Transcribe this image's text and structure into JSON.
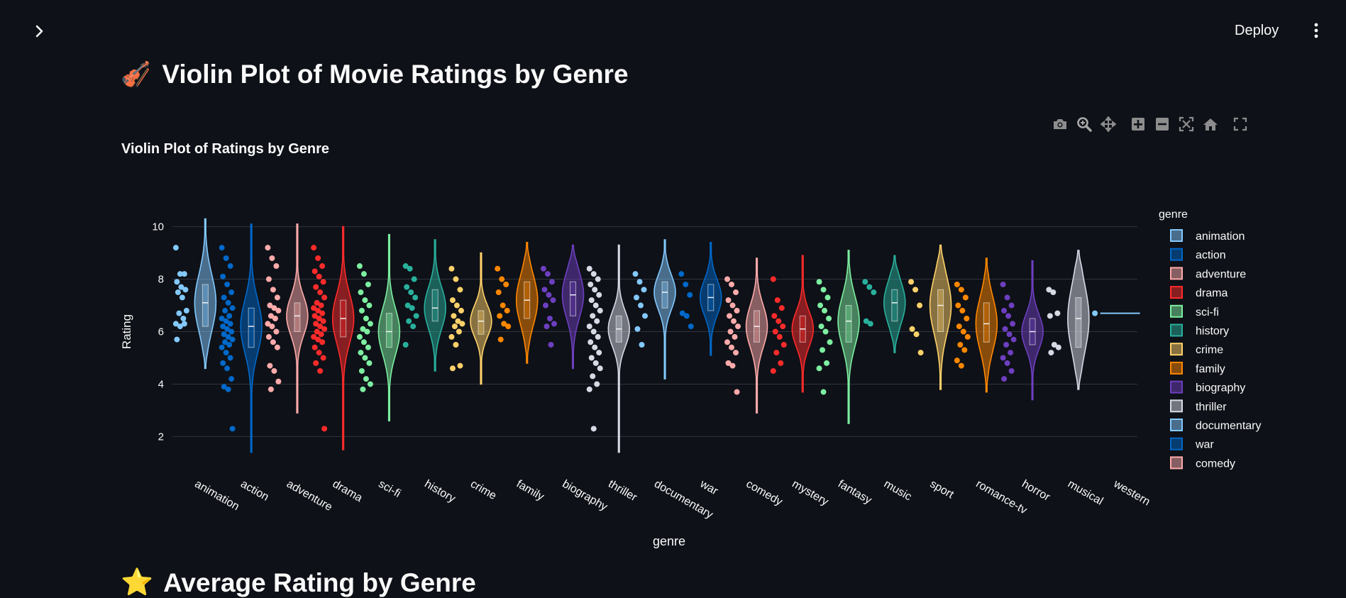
{
  "header": {
    "deploy_label": "Deploy",
    "sidebar_toggle_icon": "chevron-right-icon",
    "menu_icon": "kebab-menu-icon"
  },
  "page": {
    "title_emoji": "🎻",
    "title": "Violin Plot of Movie Ratings by Genre",
    "next_section_emoji": "⭐",
    "next_section_title": "Average Rating by Genre"
  },
  "modebar": {
    "icons": [
      "camera-icon",
      "zoom-icon",
      "pan-icon",
      "zoom-in-icon",
      "zoom-out-icon",
      "autoscale-icon",
      "reset-axes-icon",
      "fullscreen-icon"
    ]
  },
  "chart_data": {
    "type": "violin",
    "title": "Violin Plot of Ratings by Genre",
    "xlabel": "genre",
    "ylabel": "Rating",
    "ylim": [
      1.2,
      10.8
    ],
    "yticks": [
      2,
      4,
      6,
      8,
      10
    ],
    "grid": true,
    "legend_title": "genre",
    "legend_position": "right",
    "categories": [
      "animation",
      "action",
      "adventure",
      "drama",
      "sci-fi",
      "history",
      "crime",
      "family",
      "biography",
      "thriller",
      "documentary",
      "war",
      "comedy",
      "mystery",
      "fantasy",
      "music",
      "sport",
      "romance-tv",
      "horror",
      "musical",
      "western"
    ],
    "legend_visible": [
      "animation",
      "action",
      "adventure",
      "drama",
      "sci-fi",
      "history",
      "crime",
      "family",
      "biography",
      "thriller",
      "documentary",
      "war",
      "comedy"
    ],
    "series": [
      {
        "name": "animation",
        "color": "#83c9ff",
        "min": 4.6,
        "q1": 6.2,
        "median": 7.1,
        "q3": 7.8,
        "max": 10.3,
        "points": [
          9.2,
          8.2,
          8.2,
          7.9,
          7.7,
          7.6,
          7.5,
          7.3,
          6.8,
          6.7,
          6.5,
          6.3,
          6.2,
          6.3,
          5.7
        ]
      },
      {
        "name": "action",
        "color": "#0068c9",
        "min": 1.4,
        "q1": 5.4,
        "median": 6.2,
        "q3": 6.9,
        "max": 10.1,
        "points": [
          9.2,
          8.8,
          8.5,
          8.1,
          7.8,
          7.5,
          7.3,
          7.1,
          6.9,
          6.8,
          6.6,
          6.5,
          6.4,
          6.3,
          6.2,
          6.1,
          6.0,
          5.9,
          5.8,
          5.7,
          5.6,
          5.5,
          5.4,
          5.2,
          5.0,
          4.8,
          4.6,
          4.2,
          3.9,
          3.8,
          2.3
        ]
      },
      {
        "name": "adventure",
        "color": "#ffabab",
        "min": 2.9,
        "q1": 6.0,
        "median": 6.6,
        "q3": 7.1,
        "max": 10.1,
        "points": [
          9.2,
          8.8,
          8.5,
          8.0,
          7.6,
          7.3,
          7.0,
          6.9,
          6.8,
          6.6,
          6.5,
          6.3,
          6.2,
          6.0,
          5.8,
          5.6,
          5.4,
          4.7,
          4.5,
          4.1,
          3.8
        ]
      },
      {
        "name": "drama",
        "color": "#ff2b2b",
        "min": 1.5,
        "q1": 5.8,
        "median": 6.5,
        "q3": 7.2,
        "max": 10.0,
        "points": [
          9.2,
          8.8,
          8.5,
          8.3,
          8.1,
          7.9,
          7.7,
          7.5,
          7.3,
          7.1,
          7.0,
          6.9,
          6.8,
          6.7,
          6.6,
          6.5,
          6.4,
          6.3,
          6.2,
          6.1,
          6.0,
          5.9,
          5.8,
          5.7,
          5.6,
          5.4,
          5.2,
          5.0,
          4.8,
          4.5,
          2.3
        ]
      },
      {
        "name": "sci-fi",
        "color": "#7defa1",
        "min": 2.6,
        "q1": 5.4,
        "median": 6.0,
        "q3": 6.7,
        "max": 9.7,
        "points": [
          8.5,
          8.2,
          7.8,
          7.5,
          7.2,
          7.0,
          6.8,
          6.5,
          6.3,
          6.1,
          6.0,
          5.8,
          5.6,
          5.4,
          5.2,
          5.0,
          4.8,
          4.5,
          4.2,
          4.0,
          3.8
        ]
      },
      {
        "name": "history",
        "color": "#29b09d",
        "min": 4.5,
        "q1": 6.4,
        "median": 6.9,
        "q3": 7.6,
        "max": 9.5,
        "points": [
          8.5,
          8.4,
          8.0,
          7.7,
          7.5,
          7.3,
          7.0,
          6.9,
          6.6,
          6.4,
          6.2,
          5.5
        ]
      },
      {
        "name": "crime",
        "color": "#ffd16a",
        "min": 4.0,
        "q1": 5.9,
        "median": 6.4,
        "q3": 6.8,
        "max": 9.0,
        "points": [
          8.4,
          8.0,
          7.6,
          7.2,
          7.0,
          6.8,
          6.6,
          6.4,
          6.3,
          6.2,
          6.0,
          5.8,
          5.5,
          4.7,
          4.6
        ]
      },
      {
        "name": "family",
        "color": "#ff8700",
        "min": 4.8,
        "q1": 6.5,
        "median": 7.2,
        "q3": 7.9,
        "max": 9.4,
        "points": [
          8.4,
          8.0,
          7.8,
          7.5,
          7.0,
          6.8,
          6.6,
          6.3,
          6.2,
          5.7
        ]
      },
      {
        "name": "biography",
        "color": "#6d3fc0",
        "min": 4.6,
        "q1": 6.6,
        "median": 7.4,
        "q3": 7.9,
        "max": 9.3,
        "points": [
          8.4,
          8.2,
          7.9,
          7.6,
          7.4,
          7.2,
          7.0,
          6.5,
          6.3,
          6.2,
          5.5
        ]
      },
      {
        "name": "thriller",
        "color": "#d5dae5",
        "min": 1.4,
        "q1": 5.6,
        "median": 6.1,
        "q3": 6.6,
        "max": 9.3,
        "points": [
          8.4,
          8.2,
          8.0,
          7.8,
          7.6,
          7.4,
          7.2,
          7.0,
          6.8,
          6.6,
          6.4,
          6.2,
          6.0,
          5.8,
          5.6,
          5.4,
          5.2,
          5.0,
          4.8,
          4.6,
          4.3,
          4.0,
          3.8,
          2.3
        ]
      },
      {
        "name": "documentary",
        "color": "#83c9ff",
        "min": 4.2,
        "q1": 6.9,
        "median": 7.5,
        "q3": 7.9,
        "max": 9.5,
        "points": [
          8.2,
          7.9,
          7.6,
          7.3,
          7.0,
          6.6,
          6.1,
          5.5
        ]
      },
      {
        "name": "war",
        "color": "#0068c9",
        "min": 5.1,
        "q1": 6.8,
        "median": 7.3,
        "q3": 7.8,
        "max": 9.4,
        "points": [
          8.2,
          7.8,
          7.4,
          6.7,
          6.6,
          6.2
        ]
      },
      {
        "name": "comedy",
        "color": "#ffabab",
        "min": 2.9,
        "q1": 5.6,
        "median": 6.2,
        "q3": 6.8,
        "max": 8.8,
        "points": [
          8.0,
          7.8,
          7.5,
          7.2,
          7.0,
          6.8,
          6.6,
          6.4,
          6.2,
          6.0,
          5.8,
          5.6,
          5.4,
          5.2,
          4.8,
          4.7,
          3.7
        ]
      },
      {
        "name": "mystery",
        "color": "#ff2b2b",
        "min": 3.7,
        "q1": 5.6,
        "median": 6.1,
        "q3": 6.6,
        "max": 8.9,
        "points": [
          8.0,
          7.2,
          6.9,
          6.6,
          6.4,
          6.2,
          6.0,
          5.8,
          5.5,
          5.2,
          4.8,
          4.5
        ]
      },
      {
        "name": "fantasy",
        "color": "#7defa1",
        "min": 2.5,
        "q1": 5.6,
        "median": 6.4,
        "q3": 7.0,
        "max": 9.1,
        "points": [
          7.9,
          7.6,
          7.3,
          7.0,
          6.8,
          6.5,
          6.2,
          6.0,
          5.6,
          5.3,
          4.8,
          4.6,
          3.7
        ]
      },
      {
        "name": "music",
        "color": "#29b09d",
        "min": 5.2,
        "q1": 6.4,
        "median": 7.1,
        "q3": 7.6,
        "max": 8.9,
        "points": [
          7.9,
          7.7,
          7.5,
          6.4,
          6.3
        ]
      },
      {
        "name": "sport",
        "color": "#ffd16a",
        "min": 3.8,
        "q1": 6.0,
        "median": 7.0,
        "q3": 7.6,
        "max": 9.3,
        "points": [
          7.9,
          7.6,
          7.0,
          6.1,
          5.9,
          5.2
        ]
      },
      {
        "name": "romance-tv",
        "color": "#ff8700",
        "min": 3.7,
        "q1": 5.6,
        "median": 6.3,
        "q3": 7.1,
        "max": 8.8,
        "points": [
          7.8,
          7.6,
          7.3,
          7.0,
          6.8,
          6.5,
          6.2,
          6.0,
          5.8,
          5.5,
          5.3,
          4.9,
          4.7
        ]
      },
      {
        "name": "horror",
        "color": "#6d3fc0",
        "min": 3.4,
        "q1": 5.5,
        "median": 6.0,
        "q3": 6.5,
        "max": 8.7,
        "points": [
          7.8,
          7.3,
          7.0,
          6.8,
          6.6,
          6.3,
          6.1,
          5.9,
          5.7,
          5.5,
          5.2,
          5.0,
          4.8,
          4.5,
          4.2
        ]
      },
      {
        "name": "musical",
        "color": "#d5dae5",
        "min": 3.8,
        "q1": 5.4,
        "median": 6.5,
        "q3": 7.3,
        "max": 9.1,
        "points": [
          7.6,
          7.5,
          6.7,
          6.6,
          5.5,
          5.4,
          5.2
        ]
      },
      {
        "name": "western",
        "color": "#83c9ff",
        "min": 6.7,
        "q1": 6.7,
        "median": 6.7,
        "q3": 6.7,
        "max": 6.7,
        "points": [
          6.7
        ]
      }
    ]
  }
}
